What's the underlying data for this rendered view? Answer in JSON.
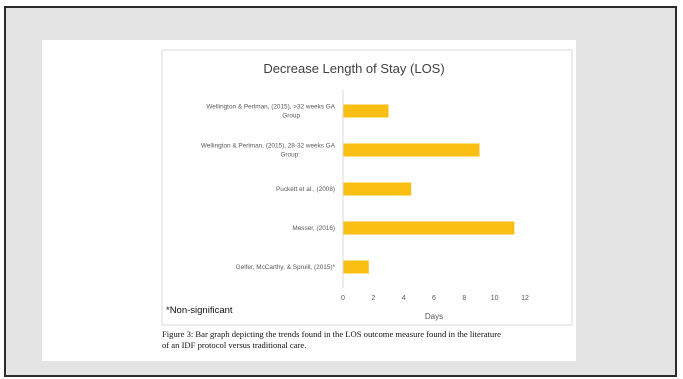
{
  "chart_data": {
    "type": "bar",
    "orientation": "horizontal",
    "title": "Decrease Length of Stay (LOS)",
    "xlabel": "Days",
    "ylabel": "",
    "xlim": [
      0,
      12
    ],
    "xticks": [
      0,
      2,
      4,
      6,
      8,
      10,
      12
    ],
    "grid": false,
    "bar_color": "#fbbf14",
    "categories": [
      [
        "Wellington & Perlman, (2015), >32 weeks GA",
        "Group"
      ],
      [
        "Wellington & Perlman, (2015), 28-32 weeks GA",
        "Group:"
      ],
      [
        "Puckett et al., (2008)"
      ],
      [
        "Messer, (2016)"
      ],
      [
        "Gelfer, McCarthy, & Spruill, (2015)*"
      ]
    ],
    "values": [
      3,
      9,
      4.5,
      11.3,
      1.7
    ],
    "note": "*Non-significant"
  },
  "caption": {
    "line1": "Figure 3: Bar graph depicting the trends found in the LOS outcome measure found in the literature",
    "line2": "of an IDF protocol versus traditional care."
  }
}
